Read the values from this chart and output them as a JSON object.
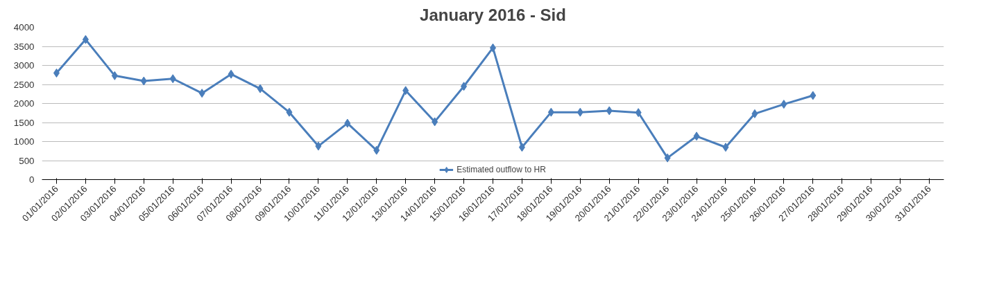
{
  "chart_data": {
    "type": "line",
    "title": "January 2016 - Sid",
    "categories": [
      "01/01/2016",
      "02/01/2016",
      "03/01/2016",
      "04/01/2016",
      "05/01/2016",
      "06/01/2016",
      "07/01/2016",
      "08/01/2016",
      "09/01/2016",
      "10/01/2016",
      "11/01/2016",
      "12/01/2016",
      "13/01/2016",
      "14/01/2016",
      "15/01/2016",
      "16/01/2016",
      "17/01/2016",
      "18/01/2016",
      "19/01/2016",
      "20/01/2016",
      "21/01/2016",
      "22/01/2016",
      "23/01/2016",
      "24/01/2016",
      "25/01/2016",
      "26/01/2016",
      "27/01/2016",
      "28/01/2016",
      "29/01/2016",
      "30/01/2016",
      "31/01/2016"
    ],
    "series": [
      {
        "name": "Estimated outflow to HR",
        "color": "#4a7ebb",
        "values": [
          2800,
          3680,
          2730,
          2590,
          2650,
          2270,
          2770,
          2390,
          1770,
          880,
          1480,
          770,
          2340,
          1520,
          2450,
          3460,
          850,
          1770,
          1770,
          1810,
          1760,
          570,
          1140,
          850,
          1730,
          1980,
          2210,
          null,
          null,
          null,
          null
        ]
      }
    ],
    "ylim": [
      0,
      4000
    ],
    "yticks": [
      0,
      500,
      1000,
      1500,
      2000,
      2500,
      3000,
      3500,
      4000
    ],
    "grid": "y",
    "legend": "bottom",
    "marker": "diamond",
    "line_style": "solid"
  }
}
